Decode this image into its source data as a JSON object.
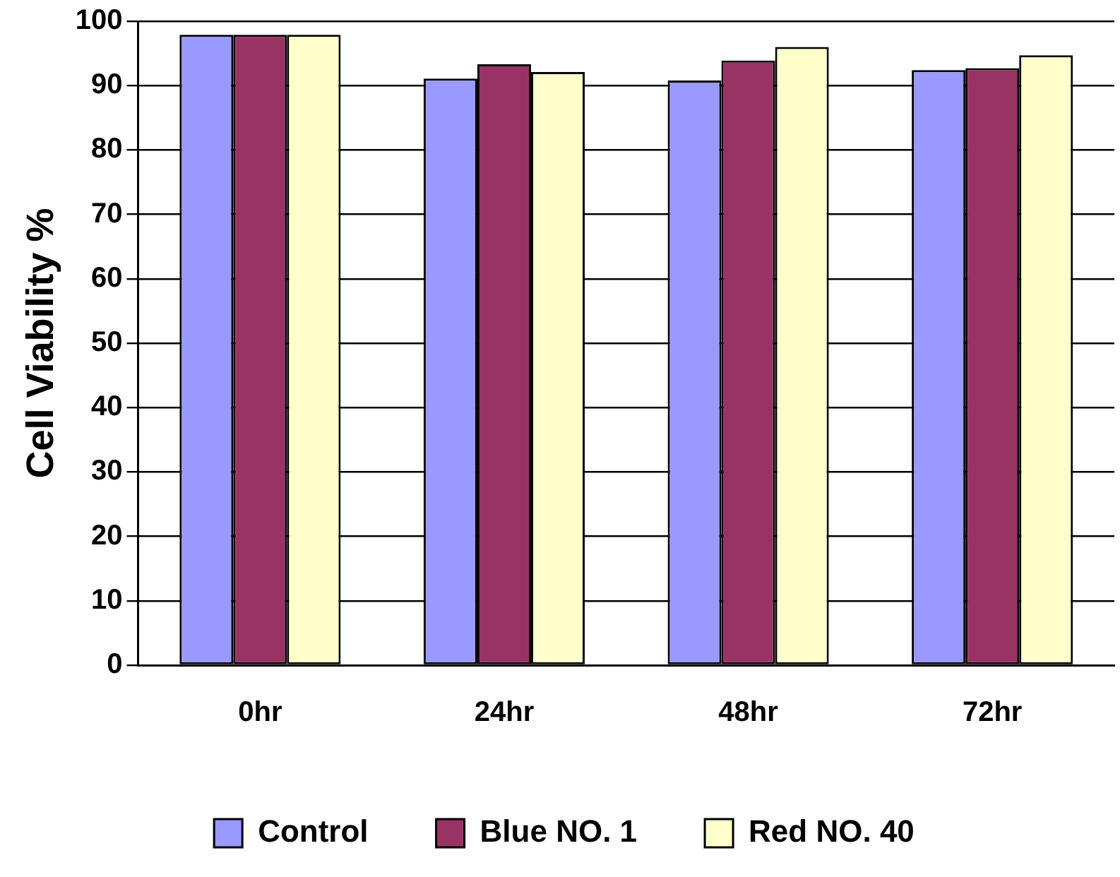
{
  "chart_data": {
    "type": "bar",
    "ylabel": "Cell Viability %",
    "categories": [
      "0hr",
      "24hr",
      "48hr",
      "72hr"
    ],
    "series": [
      {
        "name": "Control",
        "color": "#9999ff",
        "values": [
          97.9,
          91.1,
          90.8,
          92.4
        ]
      },
      {
        "name": "Blue NO. 1",
        "color": "#993366",
        "values": [
          97.9,
          93.3,
          93.9,
          92.7
        ]
      },
      {
        "name": "Red NO. 40",
        "color": "#ffffcc",
        "values": [
          97.9,
          92.1,
          96.0,
          94.7
        ]
      }
    ],
    "ylim": [
      0,
      100
    ],
    "yticks": [
      0,
      10,
      20,
      30,
      40,
      50,
      60,
      70,
      80,
      90,
      100
    ],
    "grid": "y",
    "legend": "bottom"
  }
}
